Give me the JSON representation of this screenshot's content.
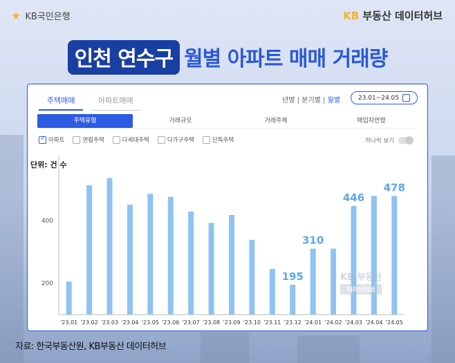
{
  "header": {
    "brand_left": "KB국민은행",
    "brand_right_kb": "KB",
    "brand_right_text": "부동산 데이터허브",
    "title_highlight": "인천 연수구",
    "title_rest": "월별 아파트 매매 거래량"
  },
  "panel": {
    "tabs": [
      "주택매매",
      "아파트매매"
    ],
    "period_options": [
      "년별",
      "분기별",
      "월별"
    ],
    "period_selected": "월별",
    "date_range": "23.01~24.05",
    "subtabs": [
      "주택유형",
      "거래규모",
      "거래주체",
      "매입자연령"
    ],
    "checkboxes": [
      {
        "label": "아파트",
        "checked": true
      },
      {
        "label": "연립주택",
        "checked": false
      },
      {
        "label": "다세대주택",
        "checked": false
      },
      {
        "label": "다가구주택",
        "checked": false
      },
      {
        "label": "단독주택",
        "checked": false
      }
    ],
    "toggle_label": "하나씩 보기",
    "watermark_line1": "KB 부동산",
    "watermark_line2": "데이터허브"
  },
  "chart_data": {
    "type": "bar",
    "ylabel": "단위: 건 수",
    "ylim": [
      100,
      580
    ],
    "yticks": [
      200,
      400
    ],
    "grid": false,
    "bar_color": "#8ec3f2",
    "label_color": "#5fa6ea",
    "categories": [
      "'23.01",
      "'23.02",
      "'23.03",
      "'23.04",
      "'23.05",
      "'23.06",
      "'23.07",
      "'23.08",
      "'23.09",
      "'23.10",
      "'23.11",
      "'23.12",
      "'24.01",
      "'24.02",
      "'24.03",
      "'24.04",
      "'24.05"
    ],
    "values": [
      205,
      512,
      535,
      450,
      485,
      475,
      428,
      392,
      417,
      338,
      245,
      195,
      310,
      310,
      446,
      478,
      478
    ],
    "data_labels": [
      {
        "index": 11,
        "text": "195"
      },
      {
        "index": 12,
        "text": "310"
      },
      {
        "index": 14,
        "text": "446"
      },
      {
        "index": 16,
        "text": "478"
      }
    ]
  },
  "footer": {
    "source": "자료: 한국부동산원, KB부동산 데이터허브"
  }
}
